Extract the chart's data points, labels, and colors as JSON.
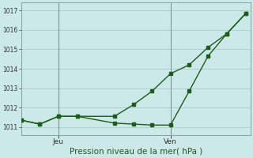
{
  "title": "Pression niveau de la mer( hPa )",
  "bg_color": "#cce8e8",
  "line_color": "#1a5c1a",
  "grid_color": "#aacccc",
  "ylim": [
    1010.6,
    1017.4
  ],
  "yticks": [
    1011,
    1012,
    1013,
    1014,
    1015,
    1016,
    1017
  ],
  "day_lines": [
    0.165,
    0.665
  ],
  "day_labels": [
    "Jeu",
    "Ven"
  ],
  "series1_x": [
    0.0,
    0.083,
    0.165,
    0.25,
    0.415,
    0.5,
    0.583,
    0.665,
    0.748,
    0.832,
    0.915,
    1.0
  ],
  "series1_y": [
    1011.35,
    1011.15,
    1011.55,
    1011.55,
    1011.2,
    1011.15,
    1011.1,
    1011.1,
    1012.85,
    1014.65,
    1015.8,
    1016.85
  ],
  "series2_x": [
    0.0,
    0.083,
    0.165,
    0.25,
    0.415,
    0.5,
    0.583,
    0.665,
    0.748,
    0.832,
    0.915,
    1.0
  ],
  "series2_y": [
    1011.35,
    1011.15,
    1011.55,
    1011.55,
    1011.55,
    1012.15,
    1012.85,
    1013.75,
    1014.2,
    1015.1,
    1015.8,
    1016.85
  ],
  "marker_size": 3.5,
  "line_width": 1.0
}
